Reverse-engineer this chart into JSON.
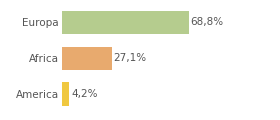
{
  "categories": [
    "America",
    "Africa",
    "Europa"
  ],
  "values": [
    4.2,
    27.1,
    68.8
  ],
  "bar_colors": [
    "#f0c840",
    "#e8aa6e",
    "#b5cc8e"
  ],
  "labels": [
    "4,2%",
    "27,1%",
    "68,8%"
  ],
  "background_color": "#ffffff",
  "xlim": [
    0,
    100
  ],
  "bar_height": 0.65,
  "label_fontsize": 7.5,
  "tick_fontsize": 7.5,
  "grid_color": "#dddddd",
  "text_color": "#555555"
}
